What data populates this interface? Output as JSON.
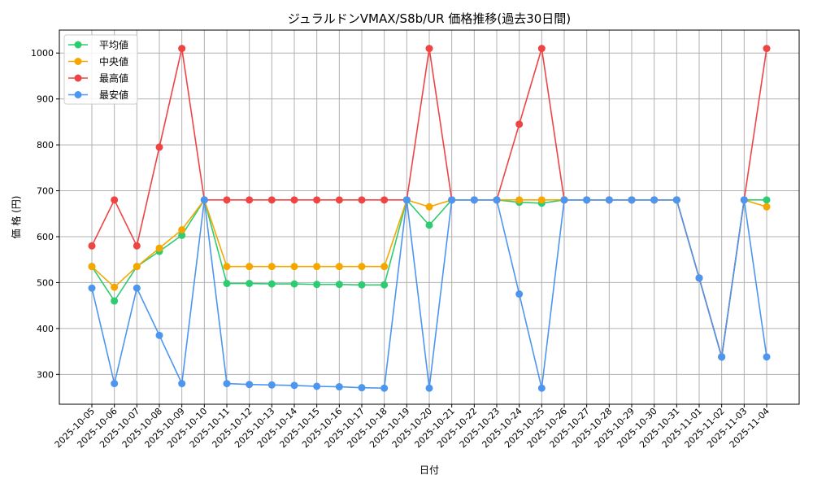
{
  "chart_data": {
    "type": "line",
    "title": "ジュラルドンVMAX/S8b/UR 価格推移(過去30日間)",
    "xlabel": "日付",
    "ylabel": "価 格 (円)",
    "ylim": [
      235,
      1050
    ],
    "yticks": [
      300,
      400,
      500,
      600,
      700,
      800,
      900,
      1000
    ],
    "grid": true,
    "legend_position": "top-left",
    "x": [
      "2025-10-05",
      "2025-10-06",
      "2025-10-07",
      "2025-10-08",
      "2025-10-09",
      "2025-10-10",
      "2025-10-11",
      "2025-10-12",
      "2025-10-13",
      "2025-10-14",
      "2025-10-15",
      "2025-10-16",
      "2025-10-17",
      "2025-10-18",
      "2025-10-19",
      "2025-10-20",
      "2025-10-21",
      "2025-10-22",
      "2025-10-23",
      "2025-10-24",
      "2025-10-25",
      "2025-10-26",
      "2025-10-27",
      "2025-10-28",
      "2025-10-29",
      "2025-10-30",
      "2025-10-31",
      "2025-11-01",
      "2025-11-02",
      "2025-11-03",
      "2025-11-04"
    ],
    "series": [
      {
        "name": "平均値",
        "color": "#2ecc71",
        "values": [
          535,
          460,
          535,
          568,
          603,
          680,
          498,
          498,
          497,
          497,
          496,
          496,
          495,
          495,
          680,
          625,
          680,
          680,
          680,
          675,
          673,
          680,
          680,
          680,
          680,
          680,
          680,
          510,
          338,
          680,
          680
        ]
      },
      {
        "name": "中央値",
        "color": "#f5a700",
        "values": [
          535,
          490,
          535,
          575,
          615,
          680,
          535,
          535,
          535,
          535,
          535,
          535,
          535,
          535,
          680,
          665,
          680,
          680,
          680,
          680,
          680,
          680,
          680,
          680,
          680,
          680,
          680,
          510,
          338,
          680,
          665
        ]
      },
      {
        "name": "最高値",
        "color": "#ee4444",
        "values": [
          580,
          680,
          580,
          795,
          1010,
          680,
          680,
          680,
          680,
          680,
          680,
          680,
          680,
          680,
          680,
          1010,
          680,
          680,
          680,
          845,
          1010,
          680,
          680,
          680,
          680,
          680,
          680,
          510,
          338,
          680,
          1010
        ]
      },
      {
        "name": "最安値",
        "color": "#4d96f0",
        "values": [
          488,
          280,
          488,
          385,
          280,
          680,
          280,
          278,
          277,
          276,
          274,
          273,
          271,
          270,
          680,
          270,
          680,
          680,
          680,
          475,
          270,
          680,
          680,
          680,
          680,
          680,
          680,
          510,
          338,
          680,
          338
        ]
      }
    ]
  }
}
